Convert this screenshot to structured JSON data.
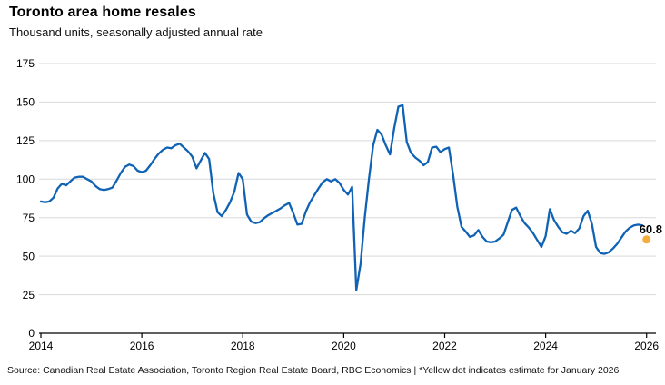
{
  "header": {
    "title": "Toronto area home resales",
    "subtitle": "Thousand units, seasonally adjusted annual rate"
  },
  "footer": {
    "source": "Source: Canadian Real Estate Association, Toronto Region Real Estate Board, RBC Economics | *Yellow dot indicates estimate for January 2026"
  },
  "chart_data": {
    "type": "line",
    "title": "Toronto area home resales",
    "subtitle": "Thousand units, seasonally adjusted annual rate",
    "frequency": "monthly",
    "x_start": "2014-01",
    "x_end": "2025-12",
    "x_tick_labels": [
      "2014",
      "2016",
      "2018",
      "2020",
      "2022",
      "2024",
      "2026"
    ],
    "y_ticks": [
      0,
      25,
      50,
      75,
      100,
      125,
      150,
      175
    ],
    "ylim": [
      0,
      175
    ],
    "grid": "horizontal-only",
    "legend": "none",
    "colors": {
      "line": "#0f62b4",
      "estimate_dot": "#f5ad3d",
      "gridline": "#d9d9d9",
      "axis": "#000000",
      "text": "#000000"
    },
    "series": [
      {
        "name": "Toronto area home resales",
        "values": [
          85.5,
          85,
          85.5,
          88,
          94,
          97,
          96,
          98.5,
          101,
          101.5,
          101.5,
          100,
          98.5,
          95.5,
          93.5,
          93,
          93.5,
          94.5,
          99,
          104,
          108,
          109.5,
          108.5,
          105.5,
          104.5,
          105.5,
          109,
          113,
          116.5,
          119,
          120.5,
          120,
          122,
          123,
          120.5,
          118,
          114.5,
          107,
          112,
          117,
          113,
          91,
          78.5,
          76,
          80,
          85,
          92,
          104,
          100,
          77,
          72.5,
          71.5,
          72,
          74.5,
          76.5,
          78,
          79.5,
          81,
          83,
          84.5,
          78,
          70.5,
          71,
          79,
          85,
          89.5,
          94,
          98,
          100,
          98.5,
          100,
          97.5,
          93,
          90,
          95,
          28,
          45,
          75,
          100,
          122,
          132,
          129,
          122,
          116,
          133,
          147,
          148,
          124,
          117,
          114,
          112,
          109,
          111,
          120.5,
          121,
          117.5,
          119.5,
          120.5,
          103,
          82,
          69,
          66,
          62.5,
          63.5,
          67,
          62.5,
          59.5,
          59,
          59.5,
          61.5,
          64,
          72,
          80,
          81.5,
          76,
          71.5,
          68.5,
          65,
          60.5,
          56,
          63,
          80.5,
          73.5,
          69,
          65.5,
          64.5,
          66.5,
          65,
          68,
          76,
          79.5,
          71,
          56,
          52,
          51.5,
          52.5,
          55,
          58,
          62,
          66,
          68.5,
          70,
          70.5,
          70
        ]
      }
    ],
    "estimate_point": {
      "label": "60.8",
      "x": "2026-01",
      "value": 60.8,
      "note": "Yellow dot indicates estimate for January 2026"
    }
  }
}
